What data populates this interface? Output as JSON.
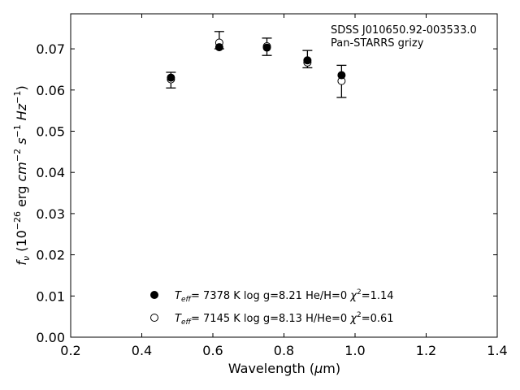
{
  "chart_data": {
    "type": "scatter",
    "annotation": {
      "line1": "SDSS J010650.92-003533.0",
      "line2": "Pan-STARRS grizy"
    },
    "xlabel": {
      "pre": "Wavelength (",
      "mu": "μ",
      "post": "m)"
    },
    "ylabel": {
      "f": "f",
      "nu": "ν",
      "open": " (10",
      "exp1": "−26",
      "erg": " erg ",
      "cm": "cm",
      "exp2": "−2",
      "s": " s",
      "exp3": "−1",
      "Hz": " Hz",
      "exp4": "−1",
      "close": ")"
    },
    "xlim": [
      0.2,
      1.4
    ],
    "ylim": [
      0.0,
      0.0785
    ],
    "xticks": [
      0.2,
      0.4,
      0.6,
      0.8,
      1.0,
      1.2,
      1.4
    ],
    "yticks": [
      0.0,
      0.01,
      0.02,
      0.03,
      0.04,
      0.05,
      0.06,
      0.07
    ],
    "xtick_labels": [
      "0.2",
      "0.4",
      "0.6",
      "0.8",
      "1.0",
      "1.2",
      "1.4"
    ],
    "ytick_labels": [
      "0.00",
      "0.01",
      "0.02",
      "0.03",
      "0.04",
      "0.05",
      "0.06",
      "0.07"
    ],
    "grid": false,
    "observed": {
      "x": [
        0.482,
        0.618,
        0.752,
        0.866,
        0.962
      ],
      "y": [
        0.0624,
        0.0721,
        0.0705,
        0.0675,
        0.0621
      ],
      "yerr": [
        0.0019,
        0.0021,
        0.0021,
        0.0021,
        0.0039
      ]
    },
    "series": [
      {
        "marker": "filled",
        "x": [
          0.482,
          0.618,
          0.752,
          0.866,
          0.962
        ],
        "y": [
          0.063,
          0.0704,
          0.0703,
          0.0672,
          0.0636
        ],
        "legend": {
          "teff": "T",
          "sub": "eff",
          "rest": "=  7378 K  log g=8.21  He/H=0  ",
          "chi": "χ",
          "sup": "2",
          "val": "=1.14"
        }
      },
      {
        "marker": "open",
        "x": [
          0.482,
          0.618,
          0.752,
          0.866,
          0.962
        ],
        "y": [
          0.0626,
          0.0715,
          0.0706,
          0.0667,
          0.0622
        ],
        "legend": {
          "teff": "T",
          "sub": "eff",
          "rest": "=  7145 K  log g=8.13  H/He=0  ",
          "chi": "χ",
          "sup": "2",
          "val": "=0.61"
        }
      }
    ],
    "legend_location": "lower-center"
  }
}
